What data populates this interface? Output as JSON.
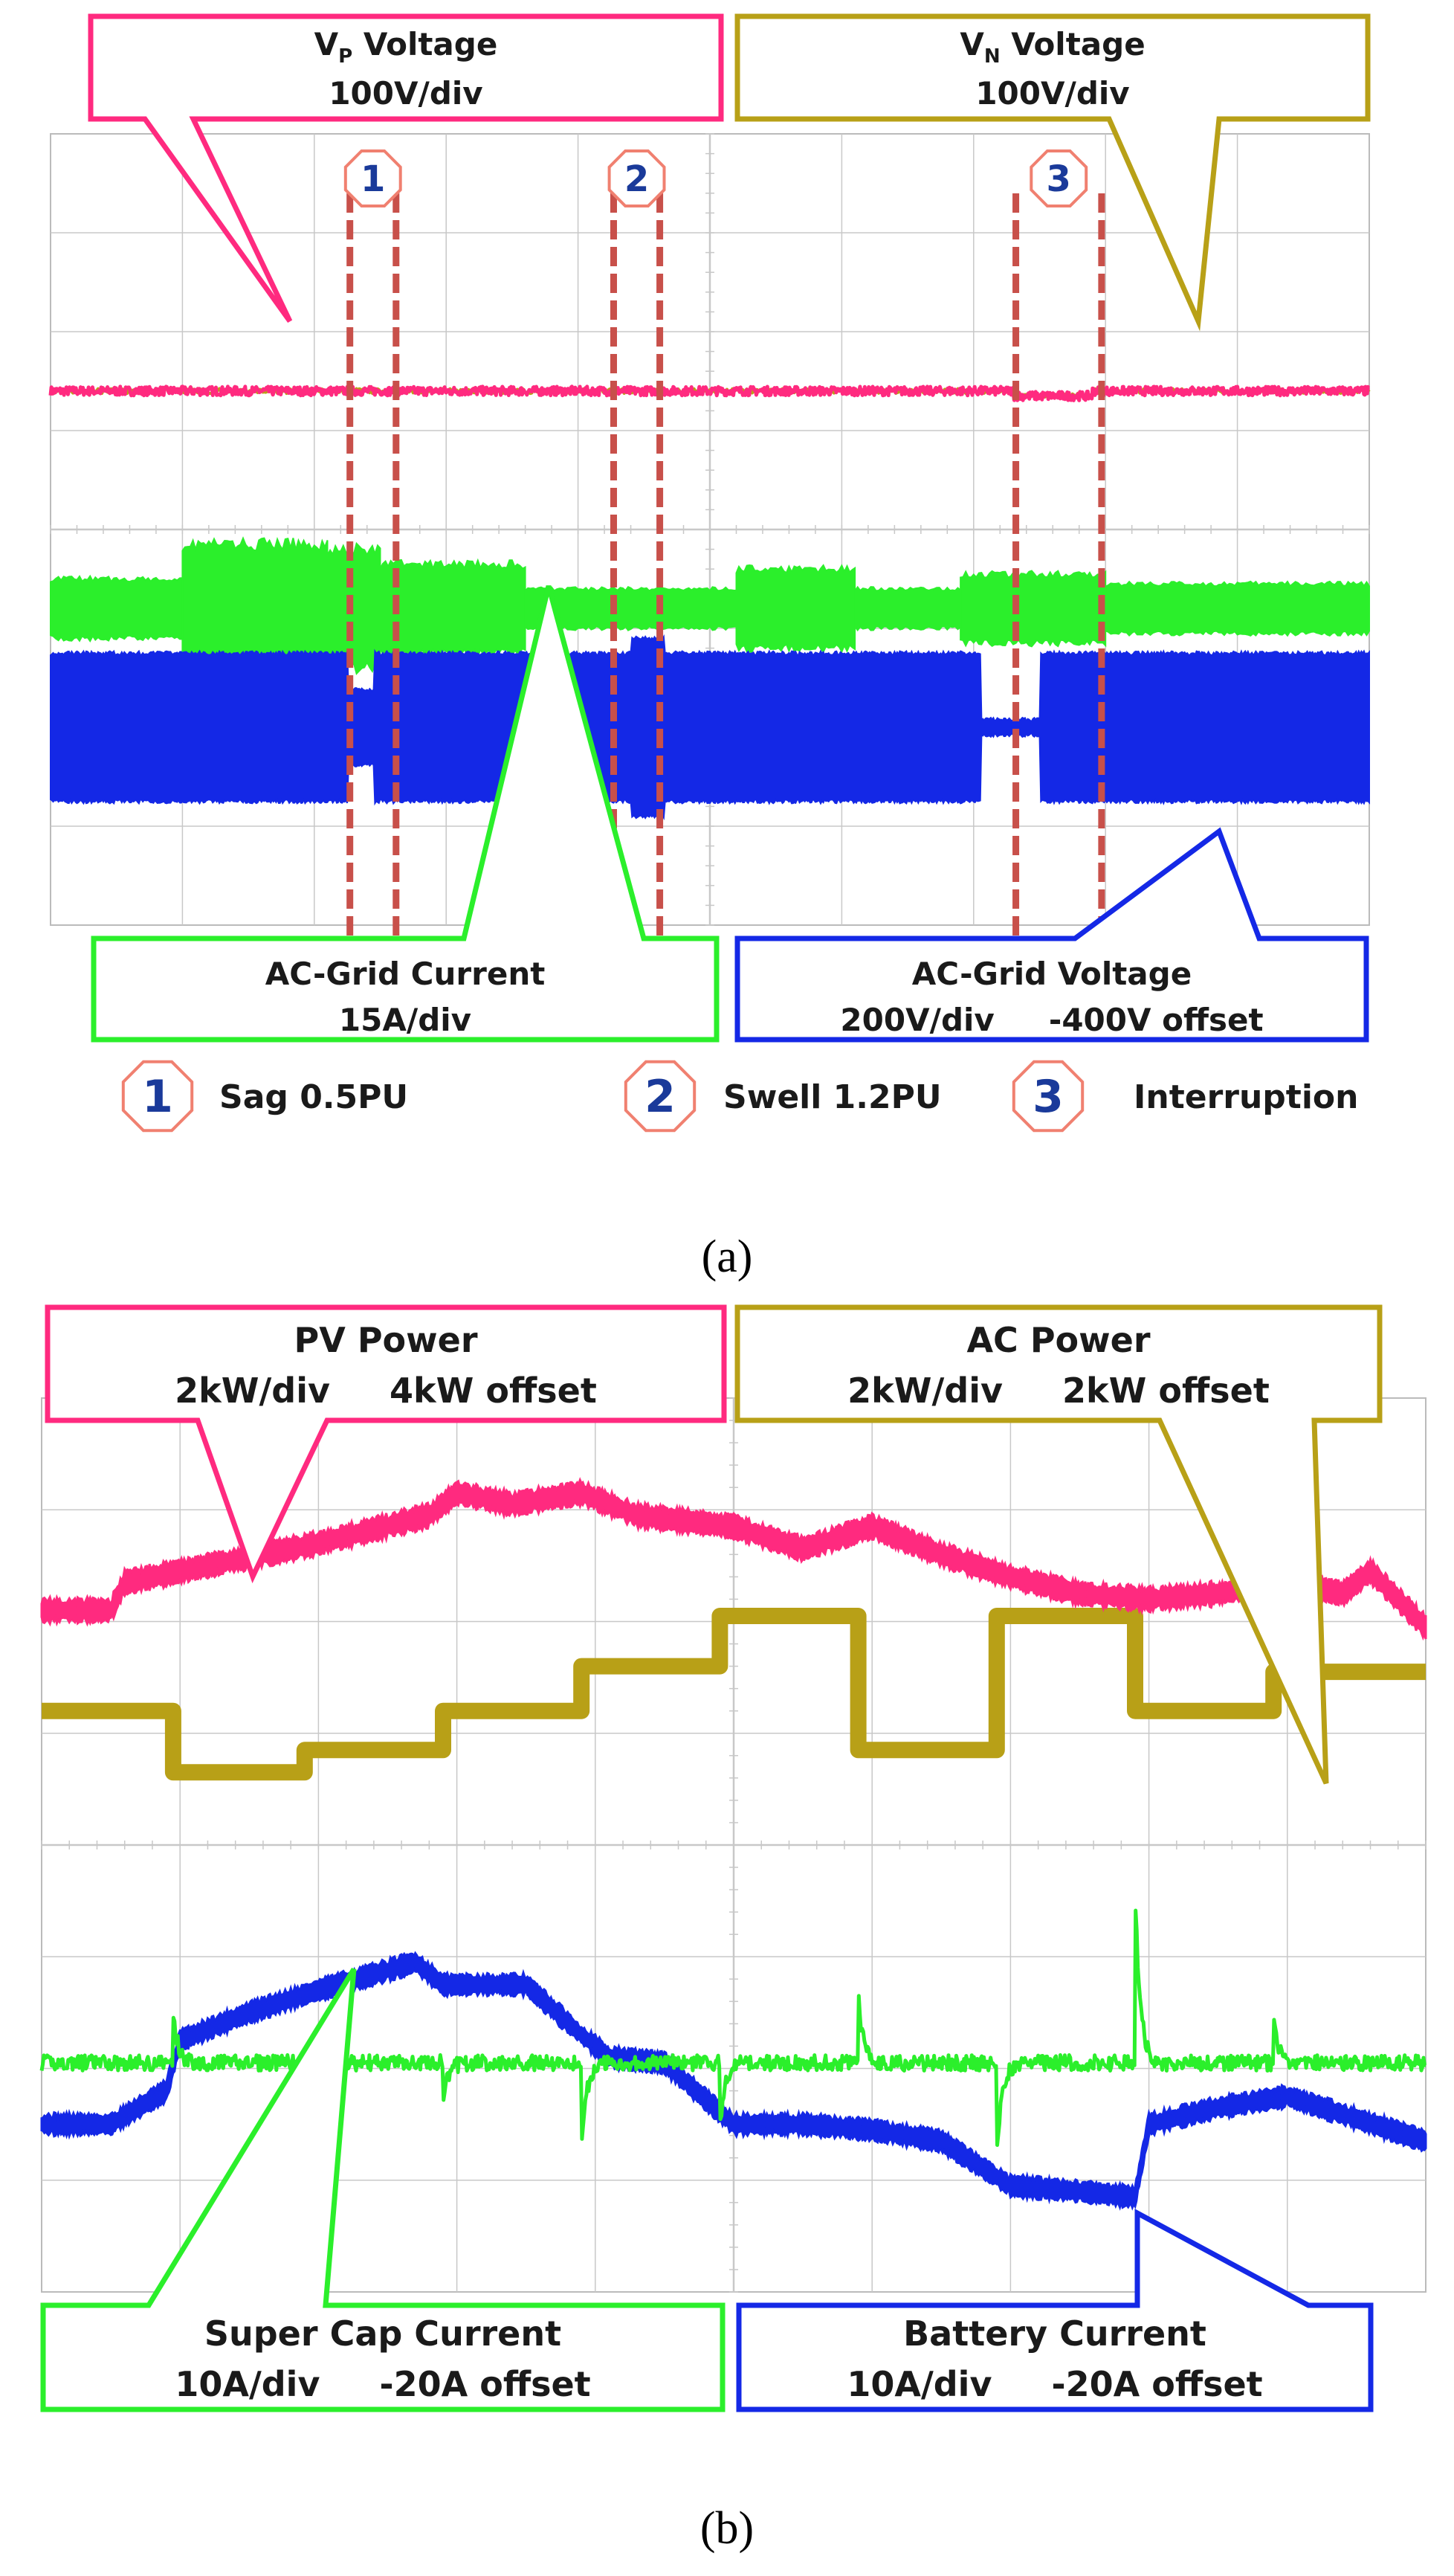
{
  "panel_a": {
    "caption": "(a)",
    "callouts": {
      "vp_voltage": {
        "line1_main": "V",
        "line1_sub": "P",
        "line1_rest": " Voltage",
        "line2": "100V/div"
      },
      "vn_voltage": {
        "line1_main": "V",
        "line1_sub": "N",
        "line1_rest": " Voltage",
        "line2": "100V/div"
      },
      "ac_grid_current": {
        "line1": "AC-Grid Current",
        "line2": "15A/div"
      },
      "ac_grid_voltage": {
        "line1": "AC-Grid Voltage",
        "line2": "200V/div     -400V offset"
      }
    },
    "events": [
      {
        "number": "1",
        "label": "Sag 0.5PU"
      },
      {
        "number": "2",
        "label": "Swell 1.2PU"
      },
      {
        "number": "3",
        "label": "Interruption"
      }
    ]
  },
  "panel_b": {
    "caption": "(b)",
    "callouts": {
      "pv_power": {
        "line1": "PV Power",
        "line2": "2kW/div     4kW offset"
      },
      "ac_power": {
        "line1": "AC Power",
        "line2": "2kW/div     2kW offset"
      },
      "super_cap_current": {
        "line1": "Super Cap Current",
        "line2": "10A/div     -20A offset"
      },
      "battery_current": {
        "line1": "Battery Current",
        "line2": "10A/div     -20A offset"
      }
    }
  },
  "colors": {
    "magenta": "#ff2a7f",
    "olive": "#b8a017",
    "green": "#2bef2b",
    "blue": "#1428e6",
    "grid": "#c8c8c8",
    "marker": "#c8504a"
  },
  "chart_data": [
    {
      "type": "line",
      "title": "",
      "grid": true,
      "divisions": {
        "x": 10,
        "y": 8
      },
      "series": [
        {
          "name": "VP Voltage",
          "scale": "100V/div",
          "color": "#ff2a7f",
          "x_div": [
            0,
            10
          ],
          "y_div": [
            5.4,
            5.4
          ]
        },
        {
          "name": "VN Voltage",
          "scale": "100V/div",
          "color": "#b8a017",
          "x_div": [
            0,
            10
          ],
          "y_div": [
            5.4,
            5.4
          ]
        },
        {
          "name": "AC-Grid Current",
          "scale": "15A/div",
          "color": "#2bef2b",
          "segments_div": [
            {
              "x": [
                0,
                1.0
              ],
              "amp": 0.3
            },
            {
              "x": [
                1.0,
                2.1
              ],
              "amp": 0.65
            },
            {
              "x": [
                2.1,
                2.5
              ],
              "amp": 0.6
            },
            {
              "x": [
                2.5,
                3.6
              ],
              "amp": 0.45
            },
            {
              "x": [
                3.6,
                5.2
              ],
              "amp": 0.2
            },
            {
              "x": [
                5.2,
                6.1
              ],
              "amp": 0.4
            },
            {
              "x": [
                6.1,
                6.9
              ],
              "amp": 0.2
            },
            {
              "x": [
                6.9,
                8.0
              ],
              "amp": 0.35
            },
            {
              "x": [
                8.0,
                10.0
              ],
              "amp": 0.25
            }
          ],
          "center_div": 3.2
        },
        {
          "name": "AC-Grid Voltage",
          "scale": "200V/div",
          "offset": "-400V offset",
          "color": "#1428e6",
          "center_div": 2.0,
          "amp_div": 0.75,
          "events_div": [
            {
              "event": "Sag 0.5PU",
              "x": [
                2.25,
                2.45
              ],
              "amp": 0.38
            },
            {
              "event": "Swell 1.2PU",
              "x": [
                4.4,
                4.65
              ],
              "amp": 0.9
            },
            {
              "event": "Interruption",
              "x": [
                7.05,
                7.5
              ],
              "amp": 0.08
            }
          ]
        }
      ],
      "event_markers_div": [
        {
          "event": "Sag 0.5PU",
          "x": [
            2.27,
            2.62
          ]
        },
        {
          "event": "Swell 1.2PU",
          "x": [
            4.27,
            4.62
          ]
        },
        {
          "event": "Interruption",
          "x": [
            7.32,
            7.97
          ]
        }
      ]
    },
    {
      "type": "line",
      "title": "",
      "grid": true,
      "divisions": {
        "x": 10,
        "y": 8
      },
      "series": [
        {
          "name": "PV Power",
          "scale": "2kW/div",
          "offset": "4kW offset",
          "color": "#ff2a7f",
          "x_div": [
            0,
            0.5,
            0.6,
            1.0,
            2.0,
            2.8,
            3.0,
            3.4,
            3.9,
            4.3,
            5.0,
            5.5,
            6.0,
            6.5,
            7.0,
            7.5,
            8.0,
            8.5,
            9.0,
            9.4,
            9.6,
            10.0
          ],
          "y_div": [
            6.1,
            6.1,
            6.35,
            6.45,
            6.7,
            6.95,
            7.15,
            7.05,
            7.15,
            6.95,
            6.85,
            6.65,
            6.85,
            6.6,
            6.4,
            6.25,
            6.2,
            6.25,
            6.35,
            6.25,
            6.45,
            5.95
          ]
        },
        {
          "name": "AC Power",
          "scale": "2kW/div",
          "offset": "2kW offset",
          "color": "#b8a017",
          "x_div": [
            0,
            0.95,
            0.95,
            1.9,
            1.9,
            2.9,
            2.9,
            3.9,
            3.9,
            4.9,
            4.9,
            5.9,
            5.9,
            6.9,
            6.9,
            7.9,
            7.9,
            8.9,
            8.9,
            10.0
          ],
          "y_div": [
            5.2,
            5.2,
            4.65,
            4.65,
            4.85,
            4.85,
            5.2,
            5.2,
            5.6,
            5.6,
            6.05,
            6.05,
            4.85,
            4.85,
            6.05,
            6.05,
            5.2,
            5.2,
            5.55,
            5.55
          ]
        },
        {
          "name": "Super Cap Current",
          "scale": "10A/div",
          "offset": "-20A offset",
          "color": "#2bef2b",
          "x_div": [
            0,
            10
          ],
          "y_div": [
            2.05,
            2.05
          ]
        },
        {
          "name": "Battery Current",
          "scale": "10A/div",
          "offset": "-20A offset",
          "color": "#1428e6",
          "x_div": [
            0,
            0.5,
            0.9,
            1.0,
            1.5,
            2.0,
            2.7,
            2.9,
            3.1,
            3.5,
            3.9,
            4.1,
            4.5,
            5.0,
            5.5,
            6.0,
            6.5,
            7.0,
            7.5,
            7.9,
            8.0,
            8.5,
            9.0,
            9.5,
            10.0
          ],
          "y_div": [
            1.5,
            1.5,
            1.8,
            2.25,
            2.5,
            2.7,
            2.95,
            2.75,
            2.75,
            2.75,
            2.3,
            2.1,
            2.05,
            1.5,
            1.5,
            1.45,
            1.35,
            0.95,
            0.9,
            0.85,
            1.5,
            1.65,
            1.75,
            1.55,
            1.35
          ]
        }
      ]
    }
  ]
}
